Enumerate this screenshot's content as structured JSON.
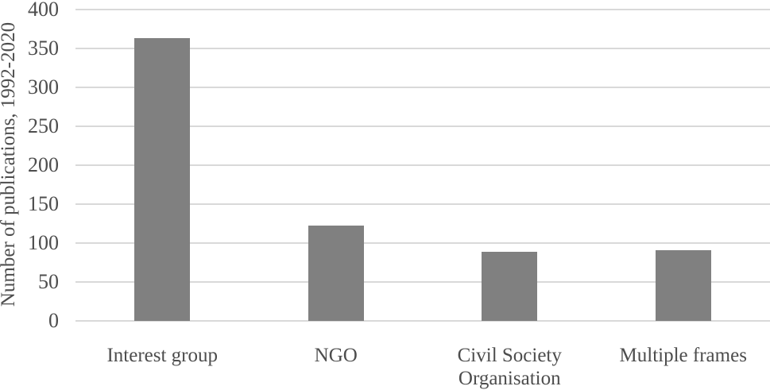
{
  "chart_data": {
    "type": "bar",
    "title": "",
    "xlabel": "",
    "ylabel": "Number of publications, 1992-2020",
    "categories": [
      "Interest group",
      "NGO",
      "Civil Society Organisation",
      "Multiple frames"
    ],
    "values": [
      363,
      122,
      89,
      91
    ],
    "ylim": [
      0,
      400
    ],
    "yticks": [
      0,
      50,
      100,
      150,
      200,
      250,
      300,
      350,
      400
    ],
    "grid": "horizontal",
    "legend": "none",
    "bar_color": "#808080",
    "gridline_color": "#D9D9D9",
    "text_color": "#4d4d4d",
    "background_color": "#FFFFFF"
  }
}
